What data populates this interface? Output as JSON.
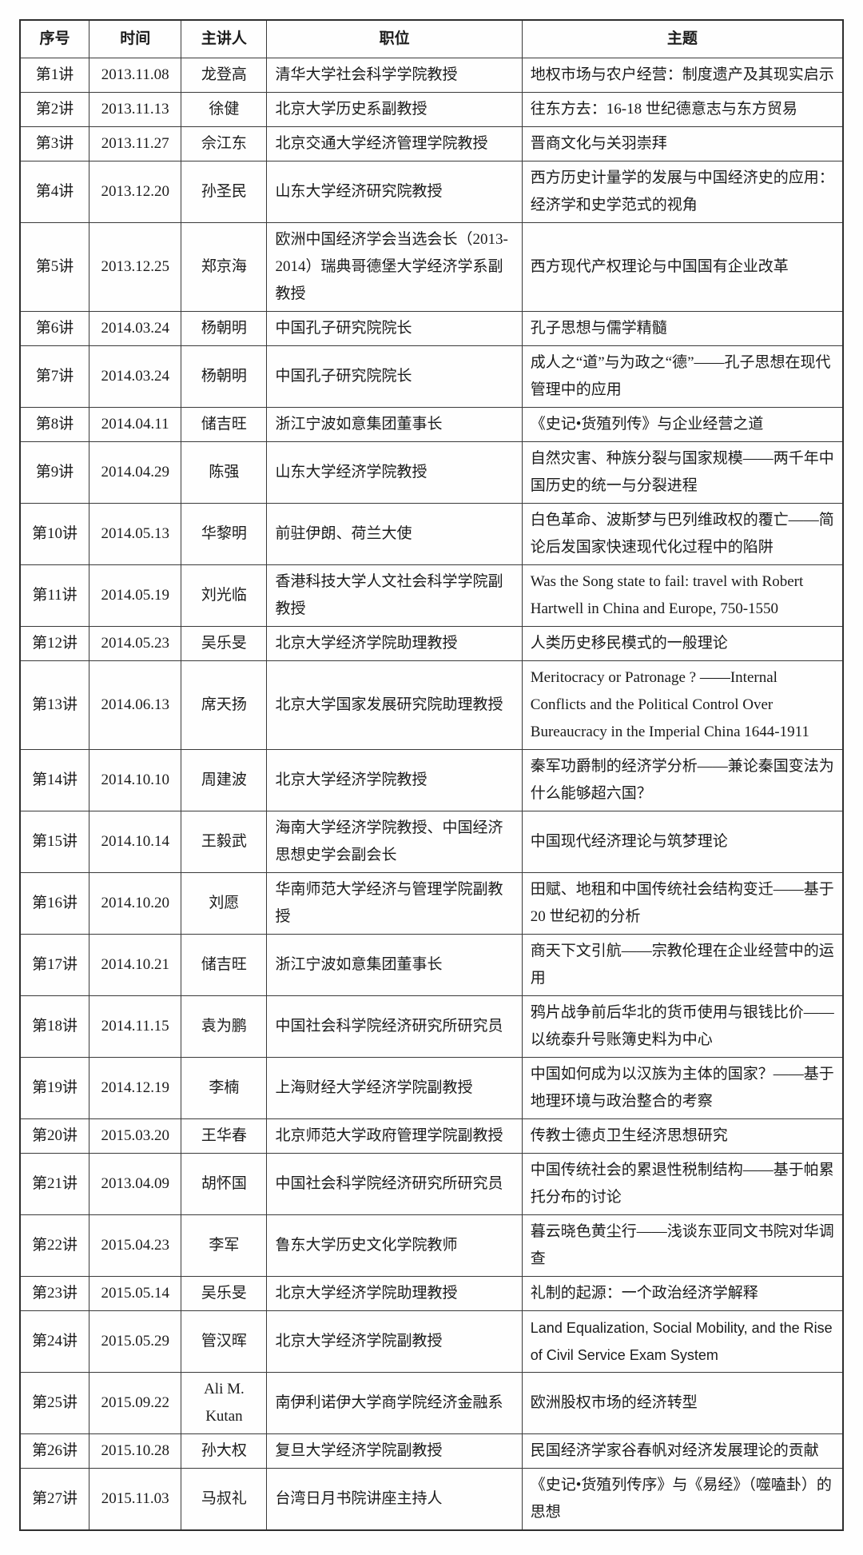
{
  "table": {
    "headers": [
      "序号",
      "时间",
      "主讲人",
      "职位",
      "主题"
    ],
    "rows": [
      {
        "no": "第1讲",
        "date": "2013.11.08",
        "speaker": "龙登高",
        "position": "清华大学社会科学学院教授",
        "topic": "地权市场与农户经营：制度遗产及其现实启示"
      },
      {
        "no": "第2讲",
        "date": "2013.11.13",
        "speaker": "徐健",
        "position": "北京大学历史系副教授",
        "topic": "往东方去：16-18 世纪德意志与东方贸易"
      },
      {
        "no": "第3讲",
        "date": "2013.11.27",
        "speaker": "佘江东",
        "position": "北京交通大学经济管理学院教授",
        "topic": "晋商文化与关羽崇拜"
      },
      {
        "no": "第4讲",
        "date": "2013.12.20",
        "speaker": "孙圣民",
        "position": "山东大学经济研究院教授",
        "topic": "西方历史计量学的发展与中国经济史的应用：经济学和史学范式的视角"
      },
      {
        "no": "第5讲",
        "date": "2013.12.25",
        "speaker": "郑京海",
        "position": "欧洲中国经济学会当选会长（2013-2014）瑞典哥德堡大学经济学系副教授",
        "topic": "西方现代产权理论与中国国有企业改革"
      },
      {
        "no": "第6讲",
        "date": "2014.03.24",
        "speaker": "杨朝明",
        "position": "中国孔子研究院院长",
        "topic": "孔子思想与儒学精髓"
      },
      {
        "no": "第7讲",
        "date": "2014.03.24",
        "speaker": "杨朝明",
        "position": "中国孔子研究院院长",
        "topic": "成人之“道”与为政之“德”——孔子思想在现代管理中的应用"
      },
      {
        "no": "第8讲",
        "date": "2014.04.11",
        "speaker": "储吉旺",
        "position": "浙江宁波如意集团董事长",
        "topic": "《史记•货殖列传》与企业经营之道"
      },
      {
        "no": "第9讲",
        "date": "2014.04.29",
        "speaker": "陈强",
        "position": "山东大学经济学院教授",
        "topic": "自然灾害、种族分裂与国家规模——两千年中国历史的统一与分裂进程"
      },
      {
        "no": "第10讲",
        "date": "2014.05.13",
        "speaker": "华黎明",
        "position": "前驻伊朗、荷兰大使",
        "topic": "白色革命、波斯梦与巴列维政权的覆亡——简论后发国家快速现代化过程中的陷阱"
      },
      {
        "no": "第11讲",
        "date": "2014.05.19",
        "speaker": "刘光临",
        "position": "香港科技大学人文社会科学学院副教授",
        "topic": "Was the Song state to fail: travel with Robert Hartwell in China and Europe, 750-1550"
      },
      {
        "no": "第12讲",
        "date": "2014.05.23",
        "speaker": "吴乐旻",
        "position": "北京大学经济学院助理教授",
        "topic": "人类历史移民模式的一般理论"
      },
      {
        "no": "第13讲",
        "date": "2014.06.13",
        "speaker": "席天扬",
        "position": "北京大学国家发展研究院助理教授",
        "topic": "Meritocracy or Patronage ? ——Internal Conflicts and the Political Control Over Bureaucracy in the Imperial China 1644-1911"
      },
      {
        "no": "第14讲",
        "date": "2014.10.10",
        "speaker": "周建波",
        "position": "北京大学经济学院教授",
        "topic": "秦军功爵制的经济学分析——兼论秦国变法为什么能够超六国？"
      },
      {
        "no": "第15讲",
        "date": "2014.10.14",
        "speaker": "王毅武",
        "position": "海南大学经济学院教授、中国经济思想史学会副会长",
        "topic": "中国现代经济理论与筑梦理论"
      },
      {
        "no": "第16讲",
        "date": "2014.10.20",
        "speaker": "刘愿",
        "position": "华南师范大学经济与管理学院副教授",
        "topic": "田赋、地租和中国传统社会结构变迁——基于 20 世纪初的分析"
      },
      {
        "no": "第17讲",
        "date": "2014.10.21",
        "speaker": "储吉旺",
        "position": "浙江宁波如意集团董事长",
        "topic": "商天下文引航——宗教伦理在企业经营中的运用"
      },
      {
        "no": "第18讲",
        "date": "2014.11.15",
        "speaker": "袁为鹏",
        "position": "中国社会科学院经济研究所研究员",
        "topic": "鸦片战争前后华北的货币使用与银钱比价——以统泰升号账簿史料为中心"
      },
      {
        "no": "第19讲",
        "date": "2014.12.19",
        "speaker": "李楠",
        "position": "上海财经大学经济学院副教授",
        "topic": "中国如何成为以汉族为主体的国家？——基于地理环境与政治整合的考察"
      },
      {
        "no": "第20讲",
        "date": "2015.03.20",
        "speaker": "王华春",
        "position": "北京师范大学政府管理学院副教授",
        "topic": "传教士德贞卫生经济思想研究"
      },
      {
        "no": "第21讲",
        "date": "2013.04.09",
        "speaker": "胡怀国",
        "position": "中国社会科学院经济研究所研究员",
        "topic": "中国传统社会的累退性税制结构——基于帕累托分布的讨论"
      },
      {
        "no": "第22讲",
        "date": "2015.04.23",
        "speaker": "李军",
        "position": "鲁东大学历史文化学院教师",
        "topic": "暮云晓色黄尘行——浅谈东亚同文书院对华调查"
      },
      {
        "no": "第23讲",
        "date": "2015.05.14",
        "speaker": "吴乐旻",
        "position": "北京大学经济学院助理教授",
        "topic": "礼制的起源：一个政治经济学解释"
      },
      {
        "no": "第24讲",
        "date": "2015.05.29",
        "speaker": "管汉晖",
        "position": "北京大学经济学院副教授",
        "topic": "Land Equalization, Social Mobility, and the Rise of Civil Service Exam System",
        "topic_font": "sans"
      },
      {
        "no": "第25讲",
        "date": "2015.09.22",
        "speaker": "Ali M. Kutan",
        "position": "南伊利诺伊大学商学院经济金融系",
        "topic": "欧洲股权市场的经济转型"
      },
      {
        "no": "第26讲",
        "date": "2015.10.28",
        "speaker": "孙大权",
        "position": "复旦大学经济学院副教授",
        "topic": "民国经济学家谷春帆对经济发展理论的贡献"
      },
      {
        "no": "第27讲",
        "date": "2015.11.03",
        "speaker": "马叔礼",
        "position": "台湾日月书院讲座主持人",
        "topic": "《史记•货殖列传序》与《易经》（噬嗑卦）的思想"
      }
    ]
  }
}
